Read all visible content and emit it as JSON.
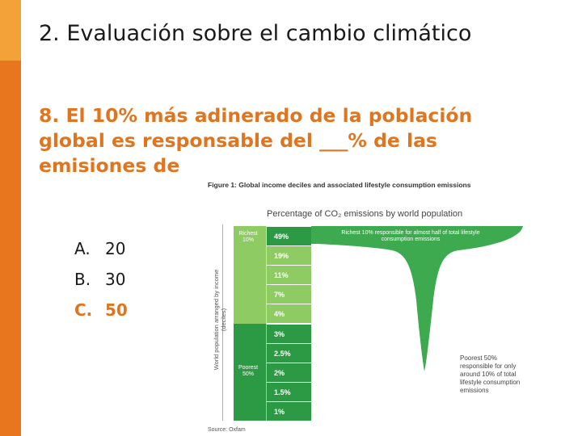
{
  "slide": {
    "title": "2. Evaluación sobre el cambio climático",
    "question": "8. El 10% más adinerado de la población global es responsable del ___% de las emisiones de",
    "options": [
      {
        "letter": "A.",
        "value": "20"
      },
      {
        "letter": "B.",
        "value": "30"
      },
      {
        "letter": "C.",
        "value": "50"
      }
    ],
    "colors": {
      "accent": "#e0751f",
      "sidebar": "#e8761f",
      "sidebar_top": "#f3a23a"
    }
  },
  "figure": {
    "caption": "Figure 1: Global income deciles and associated lifestyle consumption emissions",
    "heading": "Percentage of CO₂ emissions by world population",
    "axis_label": "World population arranged by income (deciles)",
    "richest_label": "Richest 10%",
    "poorest_label": "Poorest 50%",
    "richest_note": "Richest 10% responsible for almost half of total lifestyle consumption emissions",
    "poorest_note": "Poorest 50% responsible for only around 10% of total lifestyle consumption emissions",
    "source": "Source: Oxfam",
    "deciles": [
      "49%",
      "19%",
      "11%",
      "7%",
      "4%",
      "3%",
      "2.5%",
      "2%",
      "1.5%",
      "1%"
    ],
    "colors": {
      "light_green": "#8ecb62",
      "dark_green": "#2c9a45",
      "fill": "#3daa4f",
      "text_green": "#2a9a45"
    }
  }
}
